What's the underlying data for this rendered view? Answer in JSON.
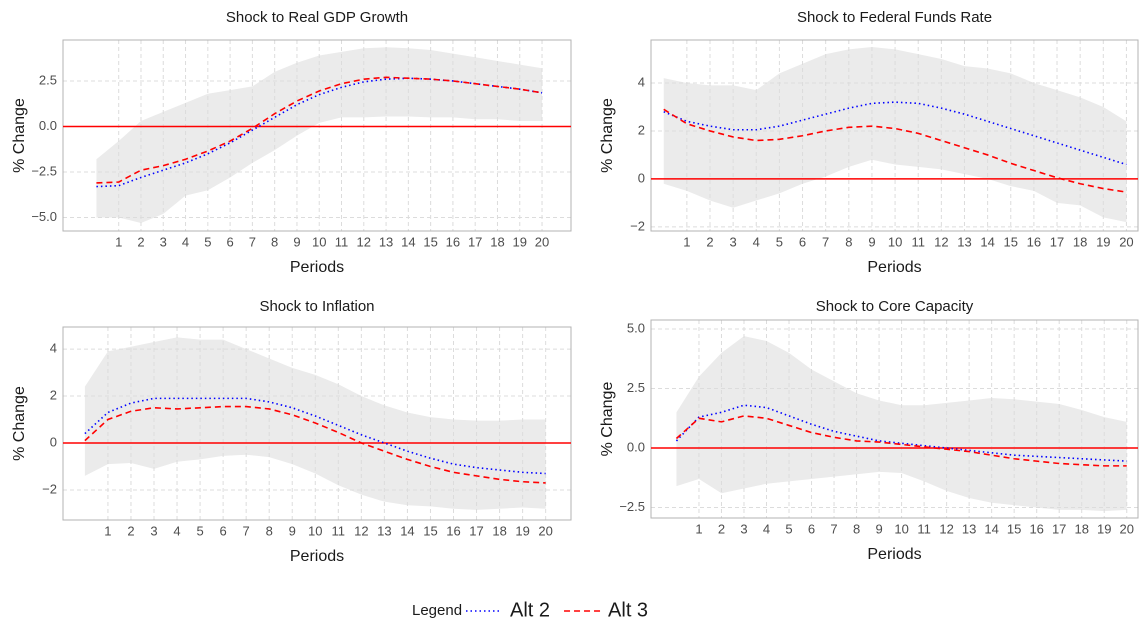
{
  "chart_data": [
    {
      "type": "line",
      "title": "Shock to Real GDP Growth",
      "x_label": "Periods",
      "y_label": "% Change",
      "x": [
        0,
        1,
        2,
        3,
        4,
        5,
        6,
        7,
        8,
        9,
        10,
        11,
        12,
        13,
        14,
        15,
        16,
        17,
        18,
        19,
        20
      ],
      "xlim": [
        -1.5,
        21.3
      ],
      "xticks": [
        1,
        2,
        3,
        4,
        5,
        6,
        7,
        8,
        9,
        10,
        11,
        12,
        13,
        14,
        15,
        16,
        17,
        18,
        19,
        20
      ],
      "ylim": [
        -5.74,
        4.75
      ],
      "yticks": [
        {
          "value": -5,
          "label": "−5.0"
        },
        {
          "value": -2.5,
          "label": "−2.5"
        },
        {
          "value": 0,
          "label": "0.0"
        },
        2.5
      ],
      "grid": true,
      "hline": 0,
      "hline_color": "#ff0000",
      "band": {
        "color": "#ebebeb",
        "lower": [
          -5.0,
          -5.0,
          -5.3,
          -4.8,
          -3.8,
          -3.5,
          -2.8,
          -2.0,
          -1.3,
          -0.5,
          0.2,
          0.5,
          0.5,
          0.55,
          0.55,
          0.5,
          0.5,
          0.4,
          0.4,
          0.3,
          0.3
        ],
        "upper": [
          -1.8,
          -0.8,
          0.3,
          0.8,
          1.3,
          1.8,
          2.0,
          2.2,
          3.0,
          3.5,
          3.9,
          4.1,
          4.3,
          4.35,
          4.3,
          4.2,
          4.0,
          3.8,
          3.6,
          3.4,
          3.2
        ]
      },
      "series": [
        {
          "name": "Alt 2",
          "color": "#0000ff",
          "dash": "dotted",
          "values": [
            -3.3,
            -3.25,
            -2.8,
            -2.4,
            -2.0,
            -1.5,
            -0.9,
            -0.2,
            0.5,
            1.2,
            1.75,
            2.15,
            2.45,
            2.6,
            2.65,
            2.6,
            2.5,
            2.35,
            2.2,
            2.05,
            1.85
          ]
        },
        {
          "name": "Alt 3",
          "color": "#ff0000",
          "dash": "dashed",
          "values": [
            -3.1,
            -3.05,
            -2.4,
            -2.15,
            -1.8,
            -1.35,
            -0.8,
            -0.1,
            0.7,
            1.4,
            1.95,
            2.35,
            2.6,
            2.7,
            2.65,
            2.6,
            2.5,
            2.35,
            2.2,
            2.05,
            1.85
          ]
        }
      ]
    },
    {
      "type": "line",
      "title": "Shock to Federal Funds Rate",
      "x_label": "Periods",
      "y_label": "% Change",
      "x": [
        0,
        1,
        2,
        3,
        4,
        5,
        6,
        7,
        8,
        9,
        10,
        11,
        12,
        13,
        14,
        15,
        16,
        17,
        18,
        19,
        20
      ],
      "xlim": [
        -0.55,
        20.5
      ],
      "xticks": [
        1,
        2,
        3,
        4,
        5,
        6,
        7,
        8,
        9,
        10,
        11,
        12,
        13,
        14,
        15,
        16,
        17,
        18,
        19,
        20
      ],
      "ylim": [
        -2.17,
        5.79
      ],
      "yticks": [
        {
          "value": -2,
          "label": "−2"
        },
        0,
        2,
        4
      ],
      "grid": true,
      "hline": 0,
      "hline_color": "#ff0000",
      "band": {
        "color": "#ebebeb",
        "lower": [
          -0.2,
          -0.5,
          -0.9,
          -1.2,
          -0.9,
          -0.6,
          -0.2,
          0.1,
          0.5,
          0.8,
          0.6,
          0.5,
          0.4,
          0.2,
          0.0,
          -0.3,
          -0.5,
          -1.0,
          -1.1,
          -1.6,
          -1.8
        ],
        "upper": [
          4.2,
          4.0,
          3.9,
          3.9,
          3.7,
          4.4,
          4.8,
          5.2,
          5.4,
          5.5,
          5.4,
          5.2,
          5.0,
          4.7,
          4.6,
          4.4,
          4.0,
          3.7,
          3.4,
          3.0,
          2.4
        ]
      },
      "series": [
        {
          "name": "Alt 2",
          "color": "#0000ff",
          "dash": "dotted",
          "values": [
            2.8,
            2.4,
            2.2,
            2.05,
            2.05,
            2.2,
            2.45,
            2.7,
            2.95,
            3.15,
            3.2,
            3.15,
            2.95,
            2.7,
            2.4,
            2.1,
            1.8,
            1.5,
            1.2,
            0.9,
            0.6
          ]
        },
        {
          "name": "Alt 3",
          "color": "#ff0000",
          "dash": "dashed",
          "values": [
            2.9,
            2.3,
            2.0,
            1.75,
            1.6,
            1.65,
            1.8,
            2.0,
            2.15,
            2.2,
            2.1,
            1.9,
            1.6,
            1.3,
            1.0,
            0.65,
            0.35,
            0.05,
            -0.2,
            -0.4,
            -0.55
          ]
        }
      ]
    },
    {
      "type": "line",
      "title": "Shock to Inflation",
      "x_label": "Periods",
      "y_label": "% Change",
      "x": [
        0,
        1,
        2,
        3,
        4,
        5,
        6,
        7,
        8,
        9,
        10,
        11,
        12,
        13,
        14,
        15,
        16,
        17,
        18,
        19,
        20
      ],
      "xlim": [
        -0.95,
        21.1
      ],
      "xticks": [
        1,
        2,
        3,
        4,
        5,
        6,
        7,
        8,
        9,
        10,
        11,
        12,
        13,
        14,
        15,
        16,
        17,
        18,
        19,
        20
      ],
      "ylim": [
        -3.28,
        4.94
      ],
      "yticks": [
        {
          "value": -2,
          "label": "−2"
        },
        0,
        2,
        4
      ],
      "grid": true,
      "hline": 0,
      "hline_color": "#ff0000",
      "band": {
        "color": "#ebebeb",
        "lower": [
          -1.4,
          -0.9,
          -0.85,
          -1.1,
          -0.8,
          -0.7,
          -0.55,
          -0.5,
          -0.6,
          -0.9,
          -1.3,
          -1.8,
          -2.2,
          -2.5,
          -2.65,
          -2.7,
          -2.8,
          -2.85,
          -2.8,
          -2.75,
          -2.8
        ],
        "upper": [
          2.4,
          3.9,
          4.1,
          4.3,
          4.5,
          4.4,
          4.4,
          4.0,
          3.6,
          3.2,
          2.9,
          2.5,
          2.0,
          1.6,
          1.3,
          1.1,
          1.0,
          0.95,
          0.95,
          1.0,
          1.0
        ]
      },
      "series": [
        {
          "name": "Alt 2",
          "color": "#0000ff",
          "dash": "dotted",
          "values": [
            0.4,
            1.3,
            1.7,
            1.9,
            1.9,
            1.9,
            1.9,
            1.9,
            1.75,
            1.5,
            1.15,
            0.75,
            0.35,
            0.0,
            -0.35,
            -0.65,
            -0.9,
            -1.05,
            -1.15,
            -1.25,
            -1.3
          ]
        },
        {
          "name": "Alt 3",
          "color": "#ff0000",
          "dash": "dashed",
          "values": [
            0.1,
            1.0,
            1.35,
            1.5,
            1.45,
            1.5,
            1.55,
            1.55,
            1.45,
            1.2,
            0.85,
            0.45,
            0.0,
            -0.35,
            -0.7,
            -1.0,
            -1.25,
            -1.4,
            -1.55,
            -1.65,
            -1.7
          ]
        }
      ]
    },
    {
      "type": "line",
      "title": "Shock to Core Capacity",
      "x_label": "Periods",
      "y_label": "% Change",
      "x": [
        0,
        1,
        2,
        3,
        4,
        5,
        6,
        7,
        8,
        9,
        10,
        11,
        12,
        13,
        14,
        15,
        16,
        17,
        18,
        19,
        20
      ],
      "xlim": [
        -1.13,
        20.5
      ],
      "xticks": [
        1,
        2,
        3,
        4,
        5,
        6,
        7,
        8,
        9,
        10,
        11,
        12,
        13,
        14,
        15,
        16,
        17,
        18,
        19,
        20
      ],
      "ylim": [
        -2.94,
        5.38
      ],
      "yticks": [
        {
          "value": -2.5,
          "label": "−2.5"
        },
        {
          "value": 0,
          "label": "0.0"
        },
        2.5,
        {
          "value": 5,
          "label": "5.0"
        }
      ],
      "grid": true,
      "hline": 0,
      "hline_color": "#ff0000",
      "band": {
        "color": "#ebebeb",
        "lower": [
          -1.6,
          -1.3,
          -1.9,
          -1.7,
          -1.5,
          -1.4,
          -1.3,
          -1.2,
          -1.1,
          -1.0,
          -1.05,
          -1.4,
          -1.8,
          -2.1,
          -2.3,
          -2.4,
          -2.5,
          -2.6,
          -2.6,
          -2.65,
          -2.6
        ],
        "upper": [
          1.5,
          3.0,
          4.0,
          4.7,
          4.5,
          4.0,
          3.3,
          2.8,
          2.3,
          2.0,
          1.8,
          1.8,
          1.9,
          2.0,
          2.1,
          2.05,
          1.95,
          1.85,
          1.6,
          1.3,
          1.1
        ]
      },
      "series": [
        {
          "name": "Alt 2",
          "color": "#0000ff",
          "dash": "dotted",
          "values": [
            0.3,
            1.3,
            1.5,
            1.8,
            1.7,
            1.35,
            1.0,
            0.7,
            0.5,
            0.3,
            0.2,
            0.1,
            0.0,
            -0.1,
            -0.2,
            -0.3,
            -0.35,
            -0.4,
            -0.45,
            -0.5,
            -0.55
          ]
        },
        {
          "name": "Alt 3",
          "color": "#ff0000",
          "dash": "dashed",
          "values": [
            0.4,
            1.25,
            1.1,
            1.35,
            1.25,
            0.95,
            0.65,
            0.45,
            0.3,
            0.25,
            0.15,
            0.05,
            -0.05,
            -0.15,
            -0.3,
            -0.45,
            -0.55,
            -0.65,
            -0.7,
            -0.75,
            -0.75
          ]
        }
      ]
    }
  ],
  "legend": {
    "title": "Legend"
  }
}
